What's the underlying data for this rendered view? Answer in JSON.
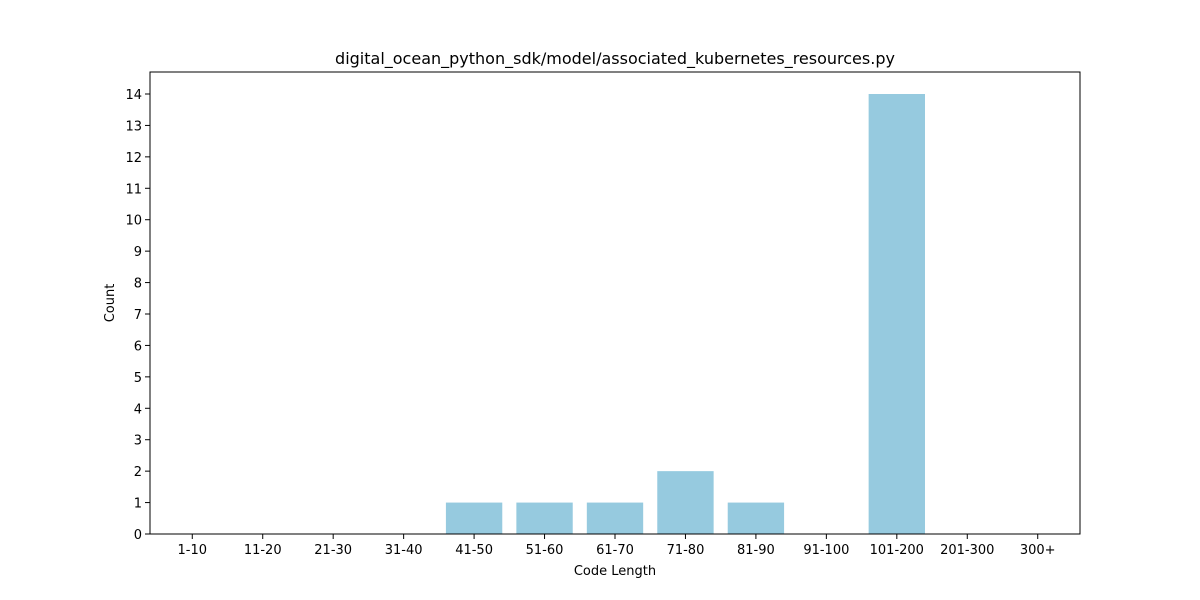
{
  "chart_data": {
    "type": "bar",
    "title": "digital_ocean_python_sdk/model/associated_kubernetes_resources.py",
    "xlabel": "Code Length",
    "ylabel": "Count",
    "categories": [
      "1-10",
      "11-20",
      "21-30",
      "31-40",
      "41-50",
      "51-60",
      "61-70",
      "71-80",
      "81-90",
      "91-100",
      "101-200",
      "201-300",
      "300+"
    ],
    "values": [
      0,
      0,
      0,
      0,
      1,
      1,
      1,
      2,
      1,
      0,
      14,
      0,
      0
    ],
    "ylim": [
      0,
      14.7
    ],
    "yticks": [
      0,
      1,
      2,
      3,
      4,
      5,
      6,
      7,
      8,
      9,
      10,
      11,
      12,
      13,
      14
    ],
    "bar_color": "#96cadf",
    "grid": false,
    "legend": "none"
  }
}
